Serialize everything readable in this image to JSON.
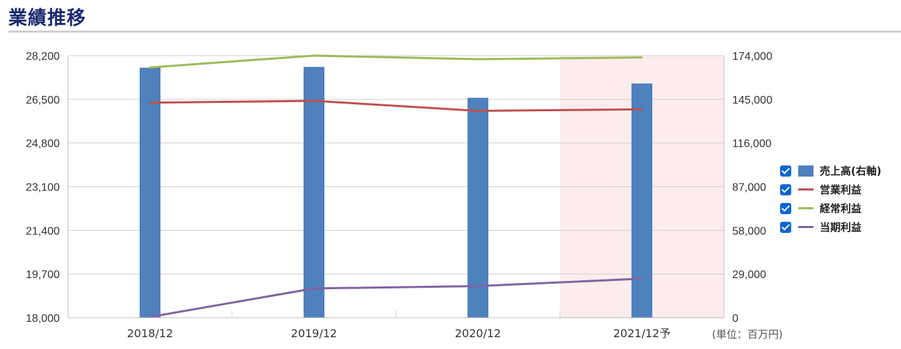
{
  "heading": "業績推移",
  "unit_note": "(単位：百万円)",
  "colors": {
    "heading": "#1c2a73",
    "bar": "#4f81bd",
    "operating": "#c0504d",
    "ordinary": "#9bbb59",
    "net": "#8064a2",
    "forecast_band": "#fdecec",
    "checkbox": "#0a66d6"
  },
  "legend": [
    {
      "label": "売上高(右軸)",
      "checked": true,
      "kind": "bar",
      "color": "#4f81bd"
    },
    {
      "label": "営業利益",
      "checked": true,
      "kind": "line",
      "color": "#c0504d"
    },
    {
      "label": "経常利益",
      "checked": true,
      "kind": "line",
      "color": "#9bbb59"
    },
    {
      "label": "当期利益",
      "checked": true,
      "kind": "line",
      "color": "#8064a2"
    }
  ],
  "chart_data": {
    "type": "bar",
    "categories": [
      "2018/12",
      "2019/12",
      "2020/12",
      "2021/12予"
    ],
    "forecast_index": 3,
    "left_axis": {
      "min": 18000,
      "max": 28200,
      "ticks": [
        "28,200",
        "26,500",
        "24,800",
        "23,100",
        "21,400",
        "19,700",
        "18,000"
      ]
    },
    "right_axis": {
      "min": 0,
      "max": 174000,
      "ticks": [
        "174,000",
        "145,000",
        "116,000",
        "87,000",
        "58,000",
        "29,000",
        "0"
      ]
    },
    "grid": true,
    "legend_position": "right",
    "series": [
      {
        "name": "売上高(右軸)",
        "type": "bar",
        "axis": "right",
        "values": [
          166000,
          166500,
          146000,
          155500
        ]
      },
      {
        "name": "営業利益",
        "type": "line",
        "axis": "left",
        "values": [
          26370,
          26440,
          26050,
          26110
        ]
      },
      {
        "name": "経常利益",
        "type": "line",
        "axis": "left",
        "values": [
          27740,
          28200,
          28060,
          28130
        ]
      },
      {
        "name": "当期利益",
        "type": "line",
        "axis": "left",
        "values": [
          18030,
          19140,
          19230,
          19520
        ]
      }
    ]
  }
}
